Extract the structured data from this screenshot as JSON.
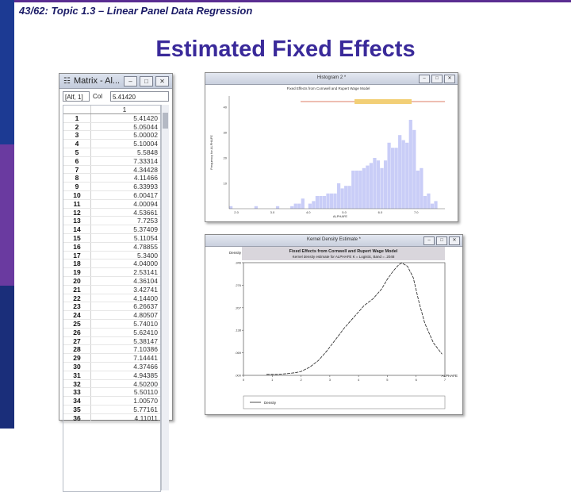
{
  "header": {
    "text": "43/62: Topic 1.3 – Linear Panel Data Regression"
  },
  "title": "Estimated Fixed Effects",
  "matrix_window": {
    "title": "Matrix - Al...",
    "cell_ref": "[Alf, 1]",
    "col_label": "Col",
    "cell_value": "5.41420",
    "column_header": "1",
    "rows": [
      {
        "i": "1",
        "v": "5.41420"
      },
      {
        "i": "2",
        "v": "5.05044"
      },
      {
        "i": "3",
        "v": "5.00002"
      },
      {
        "i": "4",
        "v": "5.10004"
      },
      {
        "i": "5",
        "v": "5.5848"
      },
      {
        "i": "6",
        "v": "7.33314"
      },
      {
        "i": "7",
        "v": "4.34428"
      },
      {
        "i": "8",
        "v": "4.11466"
      },
      {
        "i": "9",
        "v": "6.33993"
      },
      {
        "i": "10",
        "v": "6.00417"
      },
      {
        "i": "11",
        "v": "4.00094"
      },
      {
        "i": "12",
        "v": "4.53661"
      },
      {
        "i": "13",
        "v": "7.7253"
      },
      {
        "i": "14",
        "v": "5.37409"
      },
      {
        "i": "15",
        "v": "5.11054"
      },
      {
        "i": "16",
        "v": "4.78855"
      },
      {
        "i": "17",
        "v": "5.3400"
      },
      {
        "i": "18",
        "v": "4.04000"
      },
      {
        "i": "19",
        "v": "2.53141"
      },
      {
        "i": "20",
        "v": "4.36104"
      },
      {
        "i": "21",
        "v": "3.42741"
      },
      {
        "i": "22",
        "v": "4.14400"
      },
      {
        "i": "23",
        "v": "6.26637"
      },
      {
        "i": "24",
        "v": "4.80507"
      },
      {
        "i": "25",
        "v": "5.74010"
      },
      {
        "i": "26",
        "v": "5.62410"
      },
      {
        "i": "27",
        "v": "5.38147"
      },
      {
        "i": "28",
        "v": "7.10386"
      },
      {
        "i": "29",
        "v": "7.14441"
      },
      {
        "i": "30",
        "v": "4.37466"
      },
      {
        "i": "31",
        "v": "4.94385"
      },
      {
        "i": "32",
        "v": "4.50200"
      },
      {
        "i": "33",
        "v": "5.50110"
      },
      {
        "i": "34",
        "v": "1.00570"
      },
      {
        "i": "35",
        "v": "5.77161"
      },
      {
        "i": "36",
        "v": "4.11011"
      }
    ]
  },
  "histogram_window": {
    "title": "Histogram 2 *",
    "plot_title": "Fixed Effects from Cornwell and Rupert Wage Model",
    "ylabel": "Frequency for ALPHAFE",
    "xlabel": "ALPHAFE",
    "yticks": [
      "10",
      "20",
      "30",
      "40"
    ],
    "xticks": [
      "2.0",
      "3.0",
      "4.0",
      "5.0",
      "6.0",
      "7.0"
    ]
  },
  "kernel_window": {
    "title": "Kernel Density Estimate *",
    "density_label": "Density",
    "plot_title": "Fixed Effects from Cornwell and Rupert Wage Model",
    "plot_subtitle": "Kernel density estimate for   ALPHAFE   K =   Logistic, Band =   .2048",
    "yticks": [
      ".000",
      ".069",
      ".138",
      ".207",
      ".276",
      ".346"
    ],
    "xticks": [
      "0",
      "1",
      "2",
      "3",
      "4",
      "5",
      "6",
      "7"
    ],
    "xlabel": "ALPHAFE",
    "legend": "Density"
  },
  "chart_data": [
    {
      "type": "bar",
      "title": "Fixed Effects from Cornwell and Rupert Wage Model",
      "xlabel": "ALPHAFE",
      "ylabel": "Frequency for ALPHAFE",
      "x_range": [
        1.8,
        7.8
      ],
      "ylim": [
        0,
        40
      ],
      "values": [
        1,
        0,
        0,
        0,
        0,
        0,
        0,
        1,
        0,
        0,
        0,
        0,
        0,
        1,
        0,
        0,
        0,
        1,
        2,
        2,
        4,
        0,
        2,
        3,
        5,
        5,
        5,
        6,
        6,
        6,
        10,
        8,
        9,
        9,
        15,
        15,
        15,
        16,
        17,
        18,
        20,
        19,
        16,
        19,
        26,
        24,
        24,
        29,
        27,
        26,
        35,
        31,
        15,
        16,
        5,
        6,
        2,
        3,
        0,
        0
      ],
      "color": "#c9cdf7",
      "grid": false
    },
    {
      "type": "line",
      "title": "Fixed Effects from Cornwell and Rupert Wage Model",
      "xlabel": "ALPHAFE",
      "ylabel": "Density",
      "xlim": [
        0,
        7
      ],
      "ylim": [
        0,
        0.346
      ],
      "x": [
        0.8,
        1.2,
        1.5,
        1.8,
        2.0,
        2.3,
        2.6,
        2.9,
        3.2,
        3.5,
        3.8,
        4.0,
        4.2,
        4.5,
        4.8,
        5.0,
        5.2,
        5.4,
        5.5,
        5.7,
        5.9,
        6.1,
        6.3,
        6.6,
        6.9
      ],
      "y": [
        0.003,
        0.003,
        0.005,
        0.008,
        0.012,
        0.025,
        0.045,
        0.075,
        0.11,
        0.145,
        0.175,
        0.195,
        0.215,
        0.235,
        0.265,
        0.295,
        0.32,
        0.34,
        0.345,
        0.335,
        0.3,
        0.225,
        0.16,
        0.1,
        0.065
      ],
      "grid": false
    }
  ]
}
